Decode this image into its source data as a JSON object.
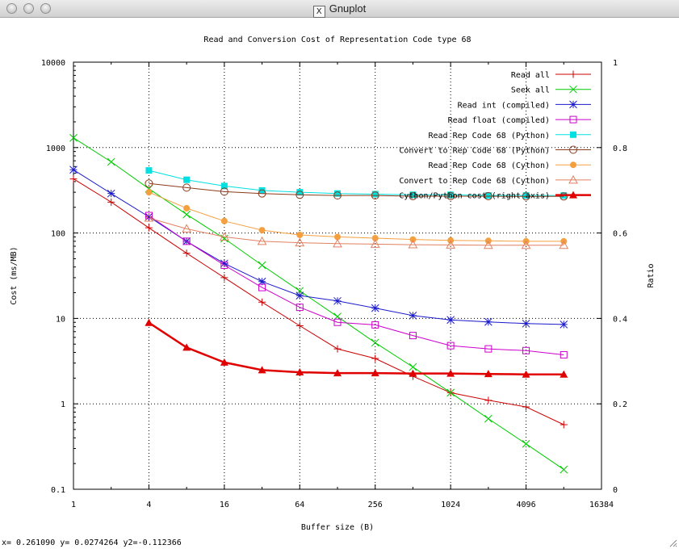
{
  "window": {
    "title": "Gnuplot",
    "icon": "x11-icon"
  },
  "status": {
    "text": "x= 0.261090 y= 0.0274264 y2=-0.112366"
  },
  "chart_data": {
    "type": "line",
    "title": "Read and Conversion Cost of Representation Code type 68",
    "xlabel": "Buffer size (B)",
    "ylabel": "Cost (ms/MB)",
    "y2label": "Ratio",
    "xscale": "log2",
    "yscale": "log10",
    "xlim": [
      1,
      16384
    ],
    "ylim": [
      0.1,
      10000
    ],
    "y2lim": [
      0,
      1
    ],
    "xticks": [
      "1",
      "4",
      "16",
      "64",
      "256",
      "1024",
      "4096",
      "16384"
    ],
    "yticks": [
      "0.1",
      "1",
      "10",
      "100",
      "1000",
      "10000"
    ],
    "y2ticks": [
      "0",
      "0.2",
      "0.4",
      "0.6",
      "0.8",
      "1"
    ],
    "grid": true,
    "legend_position": "top-right",
    "series": [
      {
        "name": "Read all",
        "marker": "plus",
        "color": "#cc0000",
        "points": [
          [
            1,
            430
          ],
          [
            2,
            230
          ],
          [
            4,
            115
          ],
          [
            8,
            58
          ],
          [
            16,
            30
          ],
          [
            32,
            15.5
          ],
          [
            64,
            8.2
          ],
          [
            128,
            4.4
          ],
          [
            256,
            3.4
          ],
          [
            512,
            2.1
          ],
          [
            1024,
            1.35
          ],
          [
            2048,
            1.1
          ],
          [
            4096,
            0.92
          ],
          [
            8192,
            0.57
          ]
        ]
      },
      {
        "name": "Seek all",
        "marker": "cross",
        "color": "#00cc00",
        "points": [
          [
            1,
            1300
          ],
          [
            2,
            680
          ],
          [
            4,
            330
          ],
          [
            8,
            165
          ],
          [
            16,
            86
          ],
          [
            32,
            42
          ],
          [
            64,
            21
          ],
          [
            128,
            10.5
          ],
          [
            256,
            5.2
          ],
          [
            512,
            2.7
          ],
          [
            1024,
            1.35
          ],
          [
            2048,
            0.67
          ],
          [
            4096,
            0.34
          ],
          [
            8192,
            0.17
          ]
        ]
      },
      {
        "name": "Read int (compiled)",
        "marker": "star",
        "color": "#1a1acc",
        "points": [
          [
            1,
            550
          ],
          [
            2,
            290
          ],
          [
            4,
            155
          ],
          [
            8,
            80
          ],
          [
            16,
            44
          ],
          [
            32,
            27
          ],
          [
            64,
            18.5
          ],
          [
            128,
            16
          ],
          [
            256,
            13.2
          ],
          [
            512,
            10.8
          ],
          [
            1024,
            9.6
          ],
          [
            2048,
            9.1
          ],
          [
            4096,
            8.7
          ],
          [
            8192,
            8.5
          ]
        ]
      },
      {
        "name": "Read float (compiled)",
        "marker": "square-open",
        "color": "#cc00cc",
        "points": [
          [
            4,
            160
          ],
          [
            8,
            80
          ],
          [
            16,
            42
          ],
          [
            32,
            23
          ],
          [
            64,
            13.5
          ],
          [
            128,
            9
          ],
          [
            256,
            8.4
          ],
          [
            512,
            6.3
          ],
          [
            1024,
            4.8
          ],
          [
            2048,
            4.4
          ],
          [
            4096,
            4.2
          ],
          [
            8192,
            3.75
          ]
        ]
      },
      {
        "name": "Read Rep Code 68 (Python)",
        "marker": "square-filled",
        "color": "#00e0e0",
        "points": [
          [
            4,
            540
          ],
          [
            8,
            420
          ],
          [
            16,
            355
          ],
          [
            32,
            315
          ],
          [
            64,
            300
          ],
          [
            128,
            290
          ],
          [
            256,
            285
          ],
          [
            512,
            280
          ],
          [
            1024,
            280
          ],
          [
            2048,
            275
          ],
          [
            4096,
            275
          ],
          [
            8192,
            275
          ]
        ]
      },
      {
        "name": "Convert to Rep Code 68 (Python)",
        "marker": "circle-open",
        "color": "#8b3a1a",
        "points": [
          [
            4,
            380
          ],
          [
            8,
            340
          ],
          [
            16,
            305
          ],
          [
            32,
            290
          ],
          [
            64,
            280
          ],
          [
            128,
            275
          ],
          [
            256,
            275
          ],
          [
            512,
            270
          ],
          [
            1024,
            270
          ],
          [
            2048,
            270
          ],
          [
            4096,
            268
          ],
          [
            8192,
            268
          ]
        ]
      },
      {
        "name": "Read Rep Code 68 (Cython)",
        "marker": "circle-filled",
        "color": "#f5a040",
        "points": [
          [
            4,
            300
          ],
          [
            8,
            195
          ],
          [
            16,
            138
          ],
          [
            32,
            108
          ],
          [
            64,
            95
          ],
          [
            128,
            90
          ],
          [
            256,
            87
          ],
          [
            512,
            84
          ],
          [
            1024,
            82
          ],
          [
            2048,
            81
          ],
          [
            4096,
            80
          ],
          [
            8192,
            80
          ]
        ]
      },
      {
        "name": "Convert to Rep Code 68 (Cython)",
        "marker": "triangle-open",
        "color": "#e08060",
        "points": [
          [
            4,
            150
          ],
          [
            8,
            112
          ],
          [
            16,
            90
          ],
          [
            32,
            80
          ],
          [
            64,
            77
          ],
          [
            128,
            75
          ],
          [
            256,
            74
          ],
          [
            512,
            73
          ],
          [
            1024,
            72.5
          ],
          [
            2048,
            72
          ],
          [
            4096,
            72
          ],
          [
            8192,
            72
          ]
        ]
      },
      {
        "name": "Cython/Python cost (right axis)",
        "marker": "triangle-filled",
        "color": "#e00000",
        "axis": "y2",
        "bold": true,
        "points": [
          [
            4,
            0.39
          ],
          [
            8,
            0.332
          ],
          [
            16,
            0.297
          ],
          [
            32,
            0.279
          ],
          [
            64,
            0.274
          ],
          [
            128,
            0.272
          ],
          [
            256,
            0.272
          ],
          [
            512,
            0.271
          ],
          [
            1024,
            0.271
          ],
          [
            2048,
            0.27
          ],
          [
            4096,
            0.269
          ],
          [
            8192,
            0.269
          ]
        ]
      }
    ]
  }
}
